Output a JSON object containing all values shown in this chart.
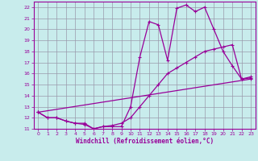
{
  "xlabel": "Windchill (Refroidissement éolien,°C)",
  "bg_color": "#c8ecec",
  "grid_color": "#9999aa",
  "line_color": "#990099",
  "xlim": [
    -0.5,
    23.5
  ],
  "ylim": [
    11,
    22.5
  ],
  "xticks": [
    0,
    1,
    2,
    3,
    4,
    5,
    6,
    7,
    8,
    9,
    10,
    11,
    12,
    13,
    14,
    15,
    16,
    17,
    18,
    19,
    20,
    21,
    22,
    23
  ],
  "yticks": [
    11,
    12,
    13,
    14,
    15,
    16,
    17,
    18,
    19,
    20,
    21,
    22
  ],
  "line1_x": [
    0,
    1,
    2,
    3,
    4,
    5,
    6,
    7,
    8,
    9,
    10,
    11,
    12,
    13,
    14,
    15,
    16,
    17,
    18,
    19,
    20,
    21,
    22,
    23
  ],
  "line1_y": [
    12.5,
    12.0,
    12.0,
    11.7,
    11.5,
    11.5,
    11.0,
    11.2,
    11.2,
    11.2,
    13.0,
    17.5,
    20.7,
    20.4,
    17.2,
    21.9,
    22.2,
    21.6,
    22.0,
    20.0,
    18.0,
    16.7,
    15.5,
    15.7
  ],
  "line2_x": [
    0,
    1,
    2,
    3,
    4,
    5,
    6,
    7,
    8,
    9,
    10,
    11,
    12,
    13,
    14,
    15,
    16,
    17,
    18,
    19,
    20,
    21,
    22,
    23
  ],
  "line2_y": [
    12.5,
    12.0,
    12.0,
    11.7,
    11.5,
    11.4,
    11.0,
    11.2,
    11.3,
    11.5,
    12.0,
    13.0,
    14.0,
    15.0,
    16.0,
    16.5,
    17.0,
    17.5,
    18.0,
    18.2,
    18.4,
    18.6,
    15.5,
    15.6
  ],
  "line3_x": [
    0,
    23
  ],
  "line3_y": [
    12.5,
    15.5
  ]
}
